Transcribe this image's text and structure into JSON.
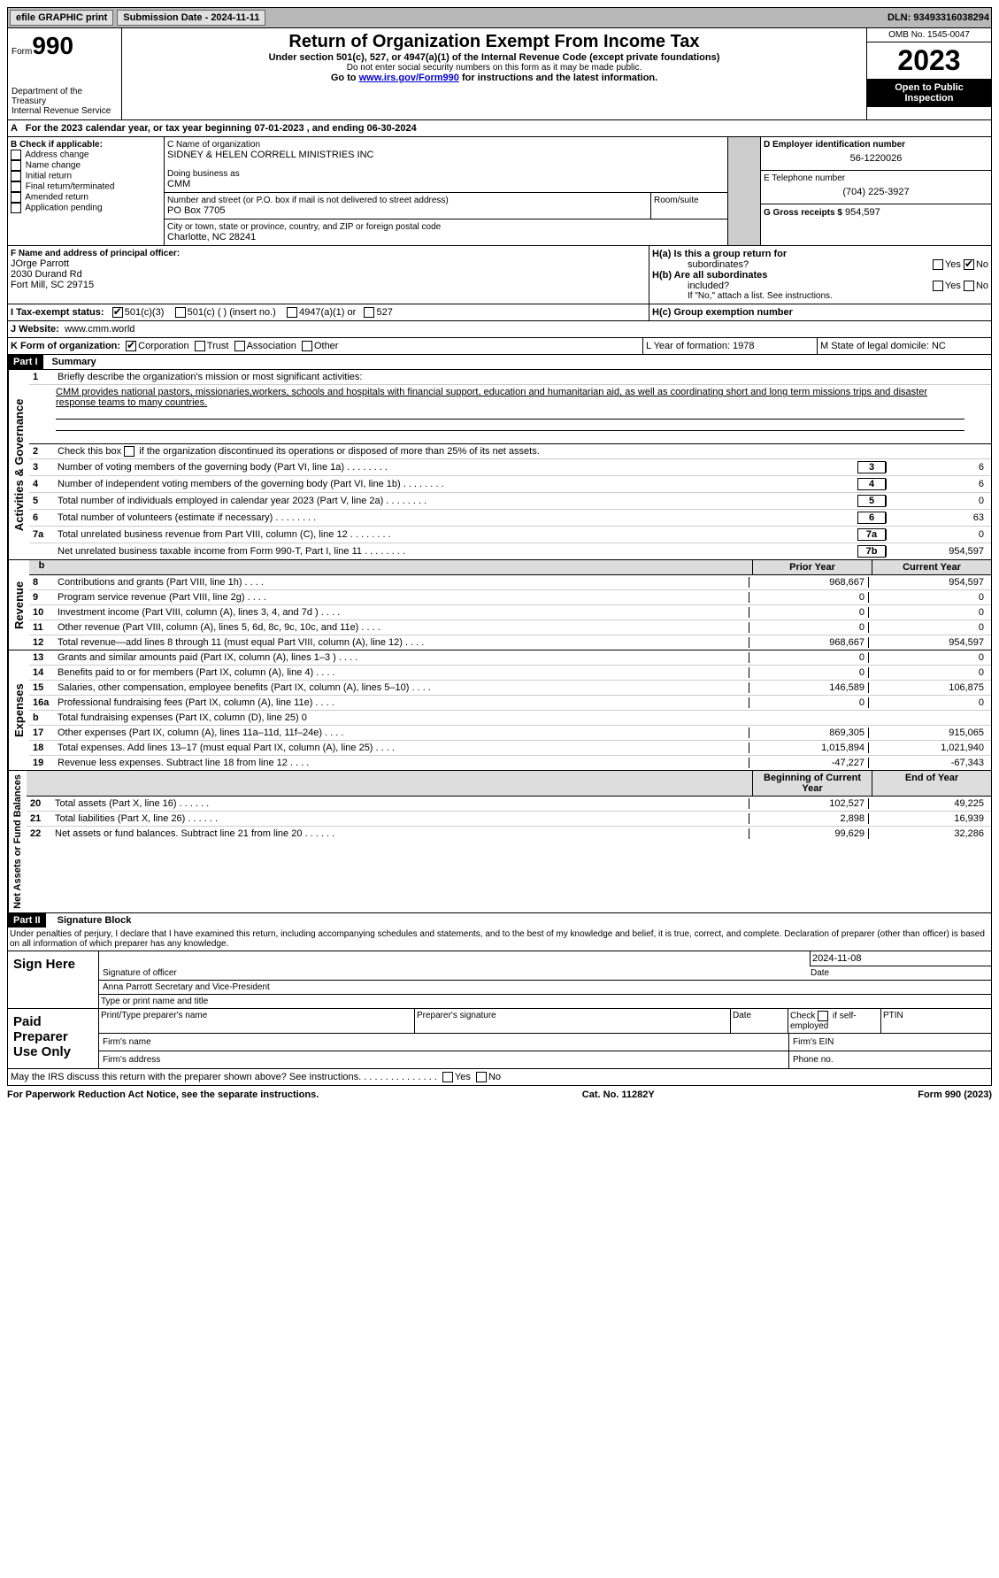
{
  "topbar": {
    "efile": "efile GRAPHIC print",
    "submission": "Submission Date - 2024-11-11",
    "dln": "DLN: 93493316038294"
  },
  "header": {
    "form_label": "Form",
    "form_no": "990",
    "dept": "Department of the Treasury",
    "irs": "Internal Revenue Service",
    "title": "Return of Organization Exempt From Income Tax",
    "subtitle": "Under section 501(c), 527, or 4947(a)(1) of the Internal Revenue Code (except private foundations)",
    "note1": "Do not enter social security numbers on this form as it may be made public.",
    "note2": "Go to ",
    "link": "www.irs.gov/Form990",
    "note3": " for instructions and the latest information.",
    "omb": "OMB No. 1545-0047",
    "year": "2023",
    "insp1": "Open to Public",
    "insp2": "Inspection"
  },
  "period": {
    "a": "A",
    "txt": "For the 2023 calendar year, or tax year beginning 07-01-2023    , and ending 06-30-2024"
  },
  "boxB": {
    "label": "B Check if applicable:",
    "items": [
      "Address change",
      "Name change",
      "Initial return",
      "Final return/terminated",
      "Amended return",
      "Application pending"
    ]
  },
  "boxC": {
    "name_lbl": "C Name of organization",
    "name": "SIDNEY & HELEN CORRELL MINISTRIES INC",
    "dba_lbl": "Doing business as",
    "dba": "CMM",
    "addr_lbl": "Number and street (or P.O. box if mail is not delivered to street address)",
    "room": "Room/suite",
    "addr": "PO Box 7705",
    "city_lbl": "City or town, state or province, country, and ZIP or foreign postal code",
    "city": "Charlotte, NC  28241"
  },
  "boxD": {
    "lbl": "D Employer identification number",
    "val": "56-1220026"
  },
  "boxE": {
    "lbl": "E Telephone number",
    "val": "(704) 225-3927"
  },
  "boxG": {
    "lbl": "G Gross receipts $",
    "val": "954,597"
  },
  "boxF": {
    "lbl": "F  Name and address of principal officer:",
    "name": "JOrge Parrott",
    "addr1": "2030 Durand Rd",
    "addr2": "Fort Mill, SC  29715"
  },
  "boxH": {
    "a": "H(a)  Is this a group return for",
    "a2": "subordinates?",
    "yes": "Yes",
    "no": "No",
    "b": "H(b)  Are all subordinates",
    "b2": "included?",
    "bnote": "If \"No,\" attach a list. See instructions.",
    "c": "H(c)  Group exemption number"
  },
  "boxI": {
    "lbl": "I    Tax-exempt status:",
    "o1": "501(c)(3)",
    "o2": "501(c) (  ) (insert no.)",
    "o3": "4947(a)(1) or",
    "o4": "527"
  },
  "boxJ": {
    "lbl": "J    Website:",
    "val": "www.cmm.world"
  },
  "boxK": {
    "lbl": "K Form of organization:",
    "o1": "Corporation",
    "o2": "Trust",
    "o3": "Association",
    "o4": "Other"
  },
  "boxL": {
    "lbl": "L Year of formation: 1978"
  },
  "boxM": {
    "lbl": "M State of legal domicile: NC"
  },
  "part1": {
    "hdr": "Part I",
    "title": "Summary"
  },
  "activities": {
    "label": "Activities & Governance",
    "l1": "Briefly describe the organization's mission or most significant activities:",
    "l1txt": "CMM provides national pastors, missionaries,workers, schools and hospitals with financial support, education and humanitarian aid, as well as coordinating short and long term missions trips and disaster response teams to many countries.",
    "l2": "Check this box",
    "l2b": "if the organization discontinued its operations or disposed of more than 25% of its net assets.",
    "rows": [
      {
        "n": "3",
        "d": "Number of voting members of the governing body (Part VI, line 1a)",
        "box": "3",
        "v": "6"
      },
      {
        "n": "4",
        "d": "Number of independent voting members of the governing body (Part VI, line 1b)",
        "box": "4",
        "v": "6"
      },
      {
        "n": "5",
        "d": "Total number of individuals employed in calendar year 2023 (Part V, line 2a)",
        "box": "5",
        "v": "0"
      },
      {
        "n": "6",
        "d": "Total number of volunteers (estimate if necessary)",
        "box": "6",
        "v": "63"
      },
      {
        "n": "7a",
        "d": "Total unrelated business revenue from Part VIII, column (C), line 12",
        "box": "7a",
        "v": "0"
      },
      {
        "n": "",
        "d": "Net unrelated business taxable income from Form 990-T, Part I, line 11",
        "box": "7b",
        "v": "954,597"
      }
    ]
  },
  "revenue": {
    "label": "Revenue",
    "h1": "Prior Year",
    "h2": "Current Year",
    "b": "b",
    "rows": [
      {
        "n": "8",
        "d": "Contributions and grants (Part VIII, line 1h)",
        "p": "968,667",
        "c": "954,597"
      },
      {
        "n": "9",
        "d": "Program service revenue (Part VIII, line 2g)",
        "p": "0",
        "c": "0"
      },
      {
        "n": "10",
        "d": "Investment income (Part VIII, column (A), lines 3, 4, and 7d )",
        "p": "0",
        "c": "0"
      },
      {
        "n": "11",
        "d": "Other revenue (Part VIII, column (A), lines 5, 6d, 8c, 9c, 10c, and 11e)",
        "p": "0",
        "c": "0"
      },
      {
        "n": "12",
        "d": "Total revenue—add lines 8 through 11 (must equal Part VIII, column (A), line 12)",
        "p": "968,667",
        "c": "954,597"
      }
    ]
  },
  "expenses": {
    "label": "Expenses",
    "rows": [
      {
        "n": "13",
        "d": "Grants and similar amounts paid (Part IX, column (A), lines 1–3 )",
        "p": "0",
        "c": "0"
      },
      {
        "n": "14",
        "d": "Benefits paid to or for members (Part IX, column (A), line 4)",
        "p": "0",
        "c": "0"
      },
      {
        "n": "15",
        "d": "Salaries, other compensation, employee benefits (Part IX, column (A), lines 5–10)",
        "p": "146,589",
        "c": "106,875"
      },
      {
        "n": "16a",
        "d": "Professional fundraising fees (Part IX, column (A), line 11e)",
        "p": "0",
        "c": "0"
      },
      {
        "n": "b",
        "d": "Total fundraising expenses (Part IX, column (D), line 25) 0",
        "p": "",
        "c": "",
        "shade": true
      },
      {
        "n": "17",
        "d": "Other expenses (Part IX, column (A), lines 11a–11d, 11f–24e)",
        "p": "869,305",
        "c": "915,065"
      },
      {
        "n": "18",
        "d": "Total expenses. Add lines 13–17 (must equal Part IX, column (A), line 25)",
        "p": "1,015,894",
        "c": "1,021,940"
      },
      {
        "n": "19",
        "d": "Revenue less expenses. Subtract line 18 from line 12",
        "p": "-47,227",
        "c": "-67,343"
      }
    ]
  },
  "netassets": {
    "label": "Net Assets or Fund Balances",
    "h1": "Beginning of Current Year",
    "h2": "End of Year",
    "rows": [
      {
        "n": "20",
        "d": "Total assets (Part X, line 16)",
        "p": "102,527",
        "c": "49,225"
      },
      {
        "n": "21",
        "d": "Total liabilities (Part X, line 26)",
        "p": "2,898",
        "c": "16,939"
      },
      {
        "n": "22",
        "d": "Net assets or fund balances. Subtract line 21 from line 20",
        "p": "99,629",
        "c": "32,286"
      }
    ]
  },
  "part2": {
    "hdr": "Part II",
    "title": "Signature Block",
    "decl": "Under penalties of perjury, I declare that I have examined this return, including accompanying schedules and statements, and to the best of my knowledge and belief, it is true, correct, and complete. Declaration of preparer (other than officer) is based on all information of which preparer has any knowledge."
  },
  "sign": {
    "here": "Sign Here",
    "date": "2024-11-08",
    "sig_lbl": "Signature of officer",
    "date_lbl": "Date",
    "name": "Anna Parrott Secretary and Vice-President",
    "name_lbl": "Type or print name and title"
  },
  "paid": {
    "lbl": "Paid Preparer Use Only",
    "c1": "Print/Type preparer's name",
    "c2": "Preparer's signature",
    "c3": "Date",
    "c4": "Check",
    "c4b": "if self-employed",
    "c5": "PTIN",
    "f1": "Firm's name",
    "f2": "Firm's EIN",
    "f3": "Firm's address",
    "f4": "Phone no."
  },
  "discuss": {
    "txt": "May the IRS discuss this return with the preparer shown above? See instructions.",
    "yes": "Yes",
    "no": "No"
  },
  "footer": {
    "l": "For Paperwork Reduction Act Notice, see the separate instructions.",
    "m": "Cat. No. 11282Y",
    "r": "Form 990 (2023)"
  }
}
